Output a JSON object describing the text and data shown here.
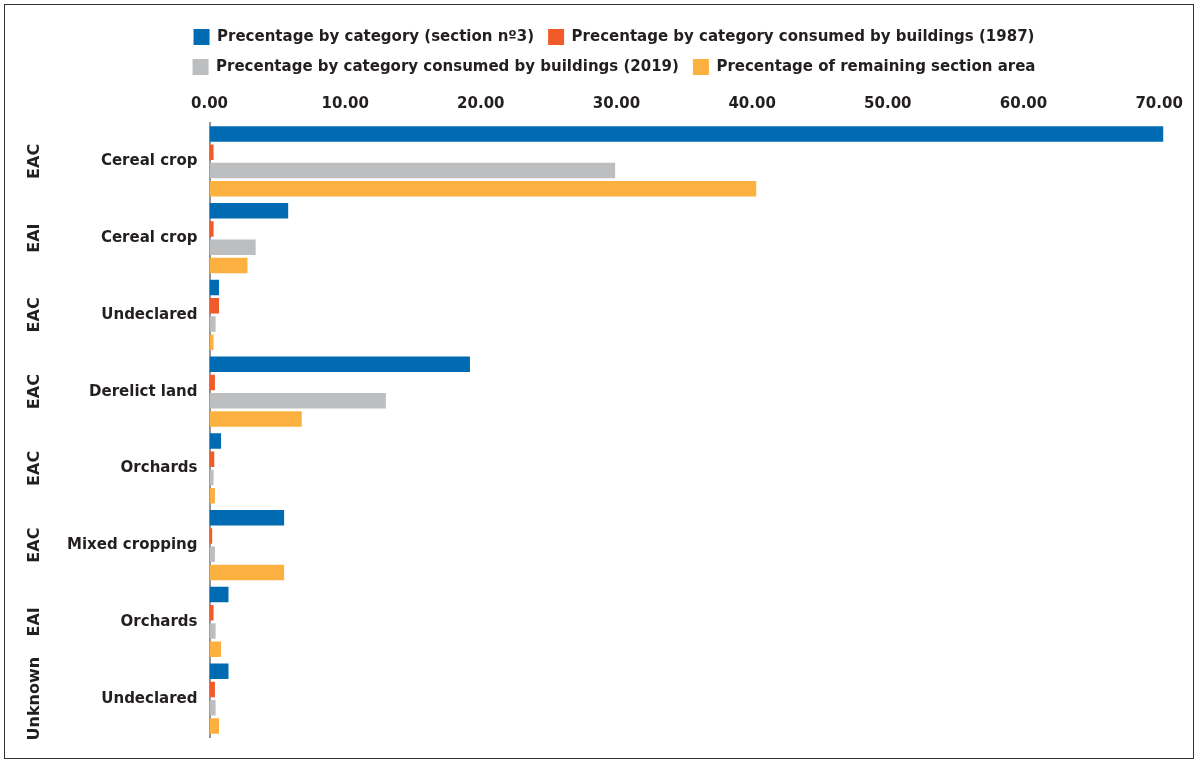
{
  "chart_data": {
    "type": "bar",
    "orientation": "horizontal",
    "categories": [
      "Cereal crop",
      "Cereal crop",
      "Undeclared",
      "Derelict land",
      "Orchards",
      "Mixed cropping",
      "Orchards",
      "Undeclared"
    ],
    "annotations": [
      "EAC",
      "EAI",
      "EAC",
      "EAC",
      "EAC",
      "EAC",
      "EAI",
      "Unknown"
    ],
    "series": [
      {
        "name": "Precentage by category (section nº3)",
        "color": "#006bb3",
        "values": [
          70.3,
          5.8,
          0.7,
          19.2,
          0.85,
          5.5,
          1.4,
          1.4
        ]
      },
      {
        "name": "Precentage by category consumed by buildings (1987)",
        "color": "#f15a29",
        "values": [
          0.3,
          0.3,
          0.7,
          0.4,
          0.35,
          0.2,
          0.3,
          0.4
        ]
      },
      {
        "name": "Precentage by category consumed by buildings (2019)",
        "color": "#bcbec0",
        "values": [
          29.9,
          3.4,
          0.45,
          13.0,
          0.3,
          0.4,
          0.45,
          0.45
        ]
      },
      {
        "name": "Precentage of remaining section area",
        "color": "#fbb040",
        "values": [
          40.3,
          2.8,
          0.3,
          6.8,
          0.4,
          5.5,
          0.85,
          0.7
        ]
      }
    ],
    "xlim": [
      0,
      70.5
    ],
    "xticks": [
      {
        "value": 0,
        "label": "0.00"
      },
      {
        "value": 10,
        "label": "10.00"
      },
      {
        "value": 20,
        "label": "20.00"
      },
      {
        "value": 30,
        "label": "30.00"
      },
      {
        "value": 40,
        "label": "40.00"
      },
      {
        "value": 50,
        "label": "50.00"
      },
      {
        "value": 60,
        "label": "60.00"
      },
      {
        "value": 70,
        "label": "70.00"
      }
    ],
    "grid": false,
    "legend": "top"
  }
}
